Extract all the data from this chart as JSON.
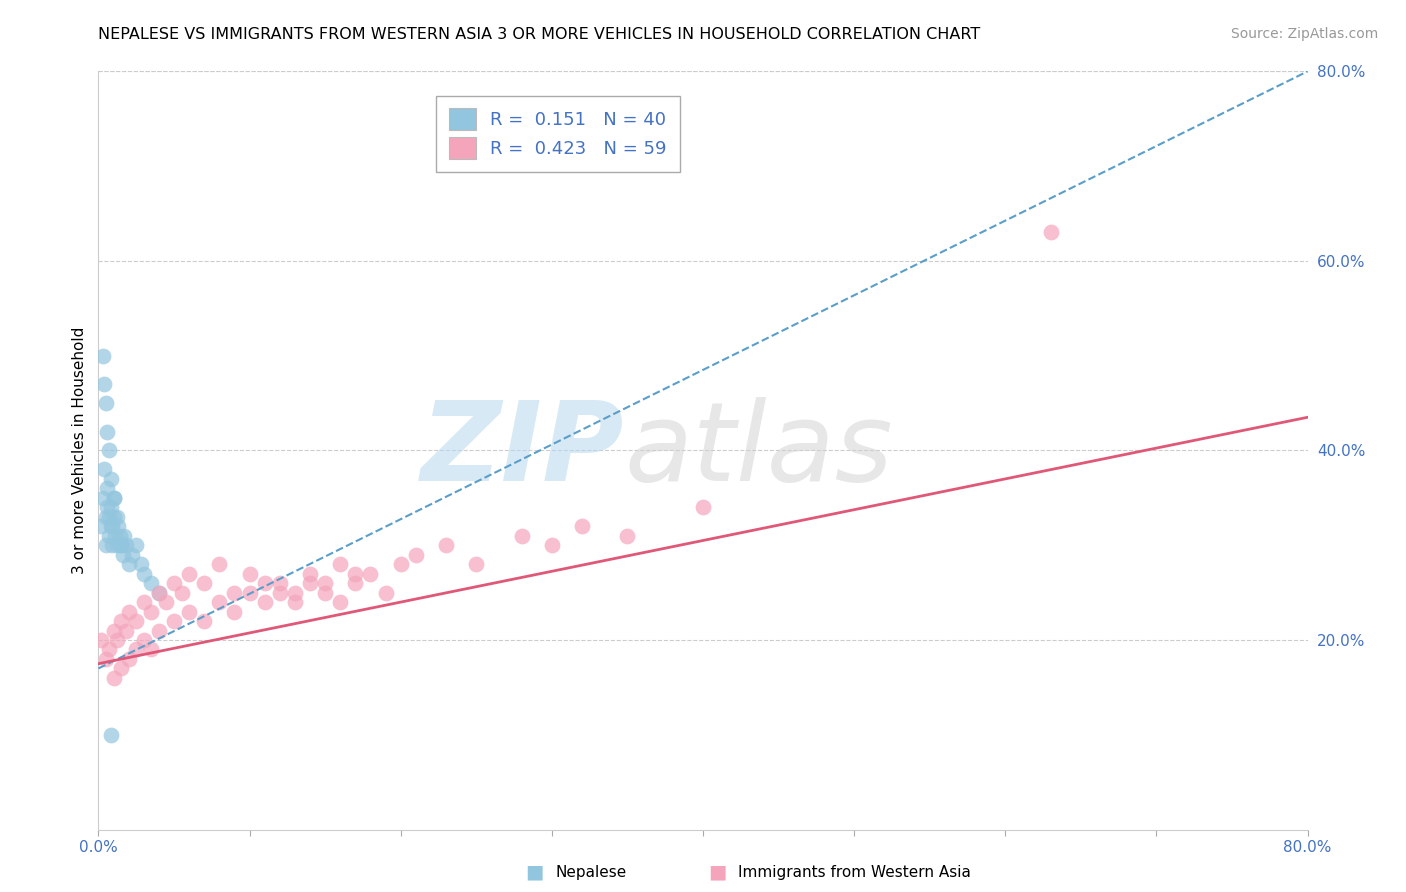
{
  "title": "NEPALESE VS IMMIGRANTS FROM WESTERN ASIA 3 OR MORE VEHICLES IN HOUSEHOLD CORRELATION CHART",
  "source": "Source: ZipAtlas.com",
  "ylabel": "3 or more Vehicles in Household",
  "legend_blue_r": 0.151,
  "legend_blue_n": 40,
  "legend_pink_r": 0.423,
  "legend_pink_n": 59,
  "blue_color": "#92c5de",
  "pink_color": "#f4a5bb",
  "blue_line_color": "#5a9ec9",
  "pink_line_color": "#e05878",
  "bottom_legend_blue": "Nepalese",
  "bottom_legend_pink": "Immigrants from Western Asia",
  "xmin": 0.0,
  "xmax": 0.8,
  "ymin": 0.0,
  "ymax": 0.8,
  "right_yticks": [
    0.2,
    0.4,
    0.6,
    0.8
  ],
  "gridline_color": "#cccccc",
  "blue_scatter_x": [
    0.002,
    0.003,
    0.004,
    0.005,
    0.005,
    0.006,
    0.006,
    0.007,
    0.007,
    0.008,
    0.008,
    0.009,
    0.009,
    0.01,
    0.01,
    0.011,
    0.012,
    0.013,
    0.014,
    0.015,
    0.016,
    0.017,
    0.018,
    0.02,
    0.022,
    0.025,
    0.028,
    0.03,
    0.035,
    0.04,
    0.003,
    0.004,
    0.005,
    0.006,
    0.007,
    0.008,
    0.01,
    0.012,
    0.015,
    0.008
  ],
  "blue_scatter_y": [
    0.32,
    0.35,
    0.38,
    0.3,
    0.33,
    0.34,
    0.36,
    0.31,
    0.33,
    0.32,
    0.34,
    0.3,
    0.32,
    0.33,
    0.35,
    0.31,
    0.3,
    0.32,
    0.31,
    0.3,
    0.29,
    0.31,
    0.3,
    0.28,
    0.29,
    0.3,
    0.28,
    0.27,
    0.26,
    0.25,
    0.5,
    0.47,
    0.45,
    0.42,
    0.4,
    0.37,
    0.35,
    0.33,
    0.3,
    0.1
  ],
  "pink_scatter_x": [
    0.002,
    0.005,
    0.007,
    0.01,
    0.012,
    0.015,
    0.018,
    0.02,
    0.025,
    0.03,
    0.035,
    0.04,
    0.045,
    0.05,
    0.055,
    0.06,
    0.07,
    0.08,
    0.09,
    0.1,
    0.11,
    0.12,
    0.13,
    0.14,
    0.15,
    0.16,
    0.17,
    0.18,
    0.19,
    0.2,
    0.01,
    0.015,
    0.02,
    0.025,
    0.03,
    0.035,
    0.04,
    0.05,
    0.06,
    0.07,
    0.08,
    0.09,
    0.1,
    0.11,
    0.12,
    0.13,
    0.14,
    0.15,
    0.16,
    0.17,
    0.21,
    0.23,
    0.25,
    0.28,
    0.3,
    0.32,
    0.35,
    0.4,
    0.63
  ],
  "pink_scatter_y": [
    0.2,
    0.18,
    0.19,
    0.21,
    0.2,
    0.22,
    0.21,
    0.23,
    0.22,
    0.24,
    0.23,
    0.25,
    0.24,
    0.26,
    0.25,
    0.27,
    0.26,
    0.28,
    0.25,
    0.27,
    0.26,
    0.25,
    0.24,
    0.26,
    0.25,
    0.24,
    0.26,
    0.27,
    0.25,
    0.28,
    0.16,
    0.17,
    0.18,
    0.19,
    0.2,
    0.19,
    0.21,
    0.22,
    0.23,
    0.22,
    0.24,
    0.23,
    0.25,
    0.24,
    0.26,
    0.25,
    0.27,
    0.26,
    0.28,
    0.27,
    0.29,
    0.3,
    0.28,
    0.31,
    0.3,
    0.32,
    0.31,
    0.34,
    0.63
  ],
  "blue_line_x0": 0.0,
  "blue_line_y0": 0.17,
  "blue_line_x1": 0.8,
  "blue_line_y1": 0.8,
  "pink_line_x0": 0.0,
  "pink_line_y0": 0.175,
  "pink_line_x1": 0.8,
  "pink_line_y1": 0.435
}
